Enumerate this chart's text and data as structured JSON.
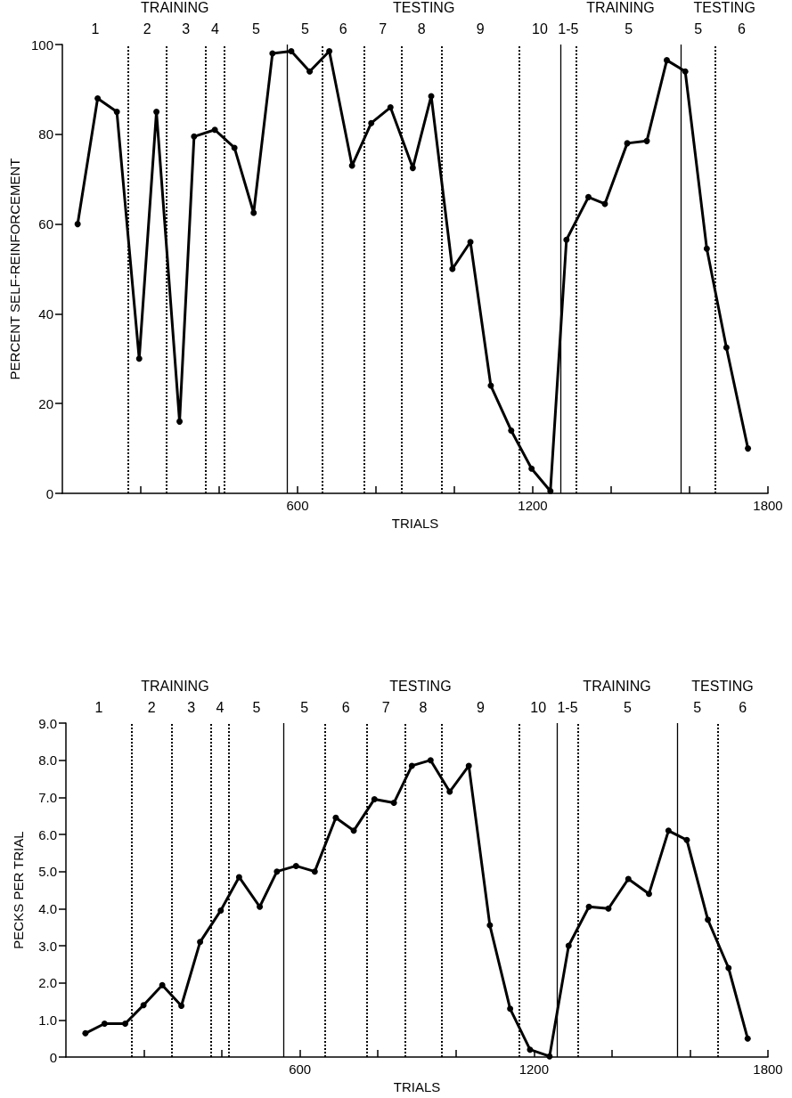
{
  "chart_data": [
    {
      "type": "line",
      "xlabel": "TRIALS",
      "ylabel": "PERCENT SELF-REINFORCEMENT",
      "x": [
        39,
        90,
        139,
        196,
        240,
        299,
        336,
        389,
        439,
        488,
        536,
        584,
        631,
        681,
        739,
        788,
        837,
        894,
        941,
        995,
        1041,
        1093,
        1145,
        1197,
        1245,
        1286,
        1342,
        1384,
        1441,
        1491,
        1542,
        1589,
        1644,
        1694,
        1749
      ],
      "values": [
        60,
        88,
        85,
        30,
        85,
        16,
        79.5,
        81,
        77,
        62.5,
        98,
        98.5,
        94,
        98.5,
        73,
        82.5,
        86,
        72.5,
        88.5,
        50,
        56,
        24,
        14,
        5.5,
        0.5,
        56.5,
        66,
        64.5,
        78,
        78.5,
        96.5,
        94,
        54.5,
        32.5,
        10
      ],
      "color": "#000000",
      "marker": "circle",
      "line_style": "solid",
      "grid": false,
      "xlim": [
        0,
        1800
      ],
      "xticks": [
        {
          "value": 200,
          "label": null
        },
        {
          "value": 400,
          "label": null
        },
        600,
        {
          "value": 800,
          "label": null
        },
        {
          "value": 1000,
          "label": null
        },
        1200,
        {
          "value": 1400,
          "label": null
        },
        {
          "value": 1600,
          "label": null
        },
        1800
      ],
      "ylim": [
        0,
        100
      ],
      "yticks": [
        0,
        20,
        40,
        60,
        80,
        100
      ],
      "ref_lines": [
        {
          "axis": "x",
          "value": 168,
          "line_style": "dotted",
          "color": "#000000"
        },
        {
          "axis": "x",
          "value": 265,
          "line_style": "dotted",
          "color": "#000000"
        },
        {
          "axis": "x",
          "value": 365,
          "line_style": "dotted",
          "color": "#000000"
        },
        {
          "axis": "x",
          "value": 414,
          "line_style": "dotted",
          "color": "#000000"
        },
        {
          "axis": "x",
          "value": 574,
          "line_style": "solid",
          "color": "#000000"
        },
        {
          "axis": "x",
          "value": 664,
          "line_style": "dotted",
          "color": "#000000"
        },
        {
          "axis": "x",
          "value": 769,
          "line_style": "dotted",
          "color": "#000000"
        },
        {
          "axis": "x",
          "value": 866,
          "line_style": "dotted",
          "color": "#000000"
        },
        {
          "axis": "x",
          "value": 967,
          "line_style": "dotted",
          "color": "#000000"
        },
        {
          "axis": "x",
          "value": 1166,
          "line_style": "dotted",
          "color": "#000000"
        },
        {
          "axis": "x",
          "value": 1270,
          "line_style": "solid",
          "color": "#000000"
        },
        {
          "axis": "x",
          "value": 1311,
          "line_style": "dotted",
          "color": "#000000"
        },
        {
          "axis": "x",
          "value": 1578,
          "line_style": "solid",
          "color": "#000000"
        },
        {
          "axis": "x",
          "value": 1666,
          "line_style": "dotted",
          "color": "#000000"
        }
      ],
      "annotations": [
        "1",
        "2",
        "3",
        "4",
        "5",
        "5",
        "6",
        "7",
        "8",
        "9",
        "10",
        "1-5",
        "5",
        "5",
        "6",
        "TRAINING",
        "TESTING",
        "TRAINING",
        "TESTING"
      ]
    },
    {
      "type": "line",
      "xlabel": "TRIALS",
      "ylabel": "PECKS PER TRIAL",
      "x": [
        50,
        99,
        152,
        199,
        247,
        296,
        344,
        397,
        444,
        497,
        541,
        590,
        638,
        692,
        738,
        791,
        841,
        887,
        935,
        984,
        1033,
        1087,
        1139,
        1190,
        1240,
        1289,
        1341,
        1391,
        1442,
        1495,
        1545,
        1592,
        1646,
        1699,
        1748
      ],
      "values": [
        0.64,
        0.9,
        0.9,
        1.4,
        1.94,
        1.38,
        3.1,
        3.95,
        4.85,
        4.05,
        5.0,
        5.15,
        5.0,
        6.45,
        6.1,
        6.95,
        6.85,
        7.85,
        8.0,
        7.15,
        7.85,
        3.55,
        1.3,
        0.2,
        0.02,
        3.0,
        4.05,
        4.0,
        4.8,
        4.4,
        6.1,
        5.85,
        3.7,
        2.4,
        0.5
      ],
      "color": "#000000",
      "marker": "circle",
      "line_style": "solid",
      "grid": false,
      "xlim": [
        0,
        1800
      ],
      "xticks": [
        {
          "value": 200,
          "label": null
        },
        {
          "value": 400,
          "label": null
        },
        600,
        {
          "value": 800,
          "label": null
        },
        {
          "value": 1000,
          "label": null
        },
        1200,
        {
          "value": 1400,
          "label": null
        },
        {
          "value": 1600,
          "label": null
        },
        1800
      ],
      "ylim": [
        0,
        9
      ],
      "yticks": [
        0,
        {
          "value": 1,
          "label": "1.0"
        },
        {
          "value": 2,
          "label": "2.0"
        },
        {
          "value": 3,
          "label": "3.0"
        },
        {
          "value": 4,
          "label": "4.0"
        },
        {
          "value": 5,
          "label": "5.0"
        },
        {
          "value": 6,
          "label": "6.0"
        },
        {
          "value": 7,
          "label": "7.0"
        },
        {
          "value": 8,
          "label": "8.0"
        },
        {
          "value": 9,
          "label": "9.0"
        }
      ],
      "ref_lines": [
        {
          "axis": "x",
          "value": 169,
          "line_style": "dotted",
          "color": "#000000"
        },
        {
          "axis": "x",
          "value": 271,
          "line_style": "dotted",
          "color": "#000000"
        },
        {
          "axis": "x",
          "value": 372,
          "line_style": "dotted",
          "color": "#000000"
        },
        {
          "axis": "x",
          "value": 418,
          "line_style": "dotted",
          "color": "#000000"
        },
        {
          "axis": "x",
          "value": 559,
          "line_style": "solid",
          "color": "#000000"
        },
        {
          "axis": "x",
          "value": 664,
          "line_style": "dotted",
          "color": "#000000"
        },
        {
          "axis": "x",
          "value": 772,
          "line_style": "dotted",
          "color": "#000000"
        },
        {
          "axis": "x",
          "value": 869,
          "line_style": "dotted",
          "color": "#000000"
        },
        {
          "axis": "x",
          "value": 963,
          "line_style": "dotted",
          "color": "#000000"
        },
        {
          "axis": "x",
          "value": 1163,
          "line_style": "dotted",
          "color": "#000000"
        },
        {
          "axis": "x",
          "value": 1259,
          "line_style": "solid",
          "color": "#000000"
        },
        {
          "axis": "x",
          "value": 1313,
          "line_style": "dotted",
          "color": "#000000"
        },
        {
          "axis": "x",
          "value": 1567,
          "line_style": "solid",
          "color": "#000000"
        },
        {
          "axis": "x",
          "value": 1671,
          "line_style": "dotted",
          "color": "#000000"
        }
      ],
      "annotations": [
        "1",
        "2",
        "3",
        "4",
        "5",
        "5",
        "6",
        "7",
        "8",
        "9",
        "10",
        "1-5",
        "5",
        "5",
        "6",
        "TRAINING",
        "TESTING",
        "TRAINING",
        "TESTING"
      ]
    }
  ]
}
